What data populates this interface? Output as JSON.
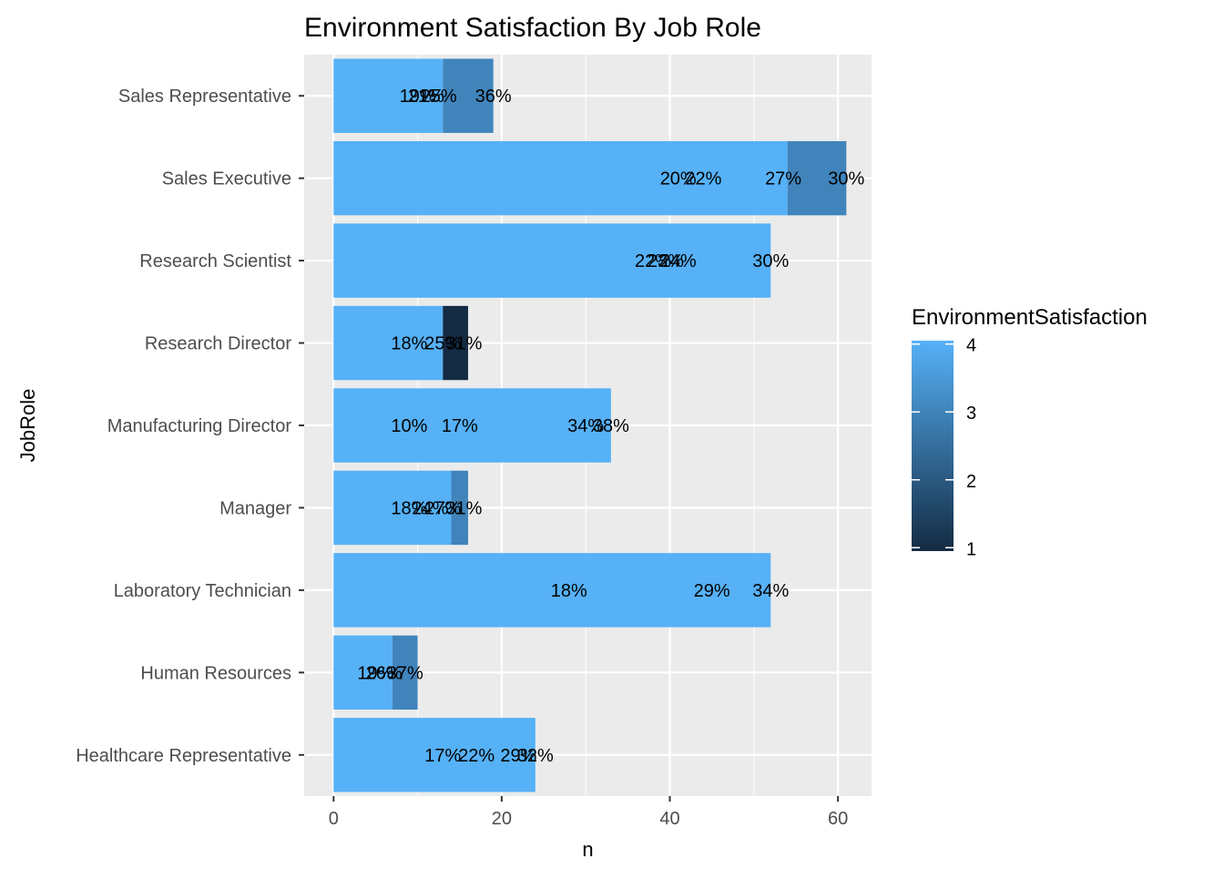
{
  "chart_data": {
    "type": "bar",
    "orientation": "horizontal",
    "title": "Environment Satisfaction By Job Role",
    "xlabel": "n",
    "ylabel": "JobRole",
    "xlim": [
      -3.5,
      64
    ],
    "x_ticks": [
      0,
      20,
      40,
      60
    ],
    "grid": true,
    "legend": {
      "title": "EnvironmentSatisfaction",
      "position": "right",
      "type": "colorbar",
      "breaks": [
        4,
        3,
        2,
        1
      ],
      "low_color": "#132B43",
      "high_color": "#56B1F7"
    },
    "categories": [
      "Healthcare Representative",
      "Human Resources",
      "Laboratory Technician",
      "Manager",
      "Manufacturing Director",
      "Research Director",
      "Research Scientist",
      "Sales Executive",
      "Sales Representative"
    ],
    "bars": [
      {
        "category": "Healthcare Representative",
        "segments": [
          {
            "value": 24,
            "level": 4
          }
        ]
      },
      {
        "category": "Human Resources",
        "segments": [
          {
            "value": 7,
            "level": 4
          },
          {
            "value": 3,
            "level": 3
          }
        ]
      },
      {
        "category": "Laboratory Technician",
        "segments": [
          {
            "value": 52,
            "level": 4
          }
        ]
      },
      {
        "category": "Manager",
        "segments": [
          {
            "value": 14,
            "level": 4
          },
          {
            "value": 2,
            "level": 3
          }
        ]
      },
      {
        "category": "Manufacturing Director",
        "segments": [
          {
            "value": 33,
            "level": 4
          }
        ]
      },
      {
        "category": "Research Director",
        "segments": [
          {
            "value": 13,
            "level": 4
          },
          {
            "value": 3,
            "level": 1
          }
        ]
      },
      {
        "category": "Research Scientist",
        "segments": [
          {
            "value": 52,
            "level": 4
          }
        ]
      },
      {
        "category": "Sales Executive",
        "segments": [
          {
            "value": 54,
            "level": 4
          },
          {
            "value": 7,
            "level": 3
          }
        ]
      },
      {
        "category": "Sales Representative",
        "segments": [
          {
            "value": 13,
            "level": 4
          },
          {
            "value": 6,
            "level": 3
          }
        ]
      }
    ],
    "data_labels": [
      {
        "category": "Sales Representative",
        "x": 10,
        "text": "19%"
      },
      {
        "category": "Sales Representative",
        "x": 11,
        "text": "21%"
      },
      {
        "category": "Sales Representative",
        "x": 12.5,
        "text": "25%"
      },
      {
        "category": "Sales Representative",
        "x": 19,
        "text": "36%"
      },
      {
        "category": "Sales Executive",
        "x": 41,
        "text": "20%"
      },
      {
        "category": "Sales Executive",
        "x": 44,
        "text": "22%"
      },
      {
        "category": "Sales Executive",
        "x": 53.5,
        "text": "27%"
      },
      {
        "category": "Sales Executive",
        "x": 61,
        "text": "30%"
      },
      {
        "category": "Research Scientist",
        "x": 38,
        "text": "22%"
      },
      {
        "category": "Research Scientist",
        "x": 39.5,
        "text": "23%"
      },
      {
        "category": "Research Scientist",
        "x": 41,
        "text": "24%"
      },
      {
        "category": "Research Scientist",
        "x": 52,
        "text": "30%"
      },
      {
        "category": "Research Director",
        "x": 9,
        "text": "18%"
      },
      {
        "category": "Research Director",
        "x": 13,
        "text": "25%"
      },
      {
        "category": "Research Director",
        "x": 15.5,
        "text": "31%"
      },
      {
        "category": "Manufacturing Director",
        "x": 9,
        "text": "10%"
      },
      {
        "category": "Manufacturing Director",
        "x": 15,
        "text": "17%"
      },
      {
        "category": "Manufacturing Director",
        "x": 30,
        "text": "34%"
      },
      {
        "category": "Manufacturing Director",
        "x": 33,
        "text": "38%"
      },
      {
        "category": "Manager",
        "x": 9,
        "text": "18%"
      },
      {
        "category": "Manager",
        "x": 11.5,
        "text": "24%"
      },
      {
        "category": "Manager",
        "x": 13,
        "text": "27%"
      },
      {
        "category": "Manager",
        "x": 15.5,
        "text": "31%"
      },
      {
        "category": "Laboratory Technician",
        "x": 28,
        "text": "18%"
      },
      {
        "category": "Laboratory Technician",
        "x": 45,
        "text": "29%"
      },
      {
        "category": "Laboratory Technician",
        "x": 52,
        "text": "34%"
      },
      {
        "category": "Human Resources",
        "x": 5,
        "text": "19%"
      },
      {
        "category": "Human Resources",
        "x": 6,
        "text": "26%"
      },
      {
        "category": "Human Resources",
        "x": 8.5,
        "text": "37%"
      },
      {
        "category": "Healthcare Representative",
        "x": 13,
        "text": "17%"
      },
      {
        "category": "Healthcare Representative",
        "x": 17,
        "text": "22%"
      },
      {
        "category": "Healthcare Representative",
        "x": 22,
        "text": "29%"
      },
      {
        "category": "Healthcare Representative",
        "x": 24,
        "text": "32%"
      }
    ]
  }
}
